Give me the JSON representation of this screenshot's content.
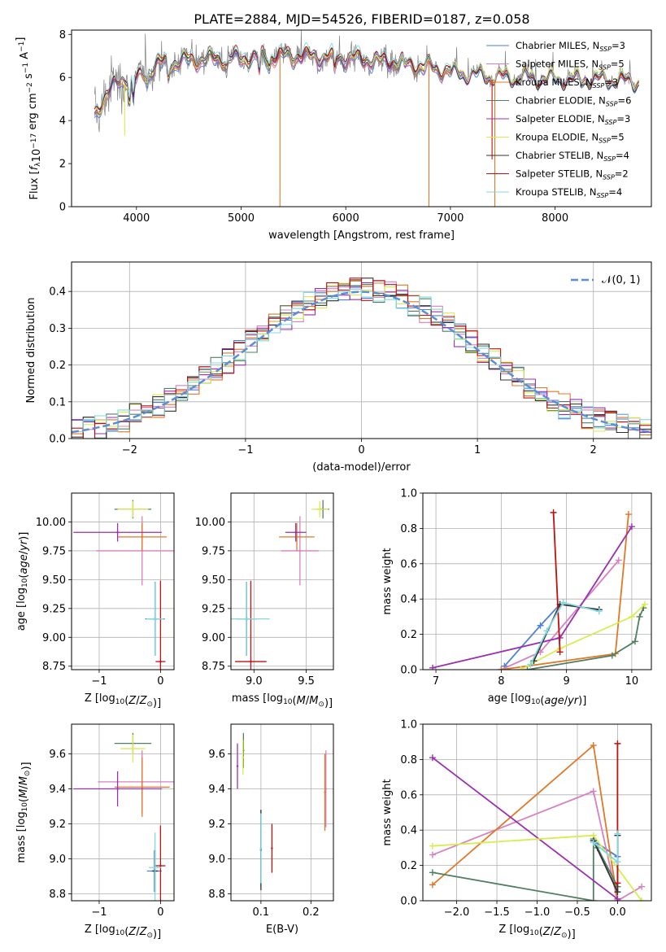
{
  "figure": {
    "title": "PLATE=2884, MJD=54526, FIBERID=0187, z=0.058"
  },
  "colors": {
    "Chabrier MILES": "#4a7fd8",
    "Salpeter MILES": "#d880c0",
    "Kroupa MILES": "#e07828",
    "Chabrier ELODIE": "#508060",
    "Salpeter ELODIE": "#9a30b0",
    "Kroupa ELODIE": "#d8ec50",
    "Chabrier STELIB": "#333333",
    "Salpeter STELIB": "#c01010",
    "Kroupa STELIB": "#80d8e0",
    "data": "#808080",
    "normal": "#5b8ed6"
  },
  "chart_data": [
    {
      "id": "spectrum",
      "type": "line",
      "xlabel": "wavelength [Angstrom, rest frame]",
      "ylabel": "Flux [f_λ 10^-17 erg cm^-2 s^-1 A^-1]",
      "xlim": [
        3380,
        8920
      ],
      "ylim": [
        0,
        8.2
      ],
      "xticks": [
        4000,
        5000,
        6000,
        7000,
        8000
      ],
      "yticks": [
        0,
        2,
        4,
        6,
        8
      ],
      "legend_position": "upper right",
      "legend": [
        {
          "name": "Chabrier MILES",
          "nssp": "3"
        },
        {
          "name": "Salpeter MILES",
          "nssp": "5"
        },
        {
          "name": "Kroupa MILES",
          "nssp": "3"
        },
        {
          "name": "Chabrier ELODIE",
          "nssp": "6"
        },
        {
          "name": "Salpeter ELODIE",
          "nssp": "3"
        },
        {
          "name": "Kroupa ELODIE",
          "nssp": "5"
        },
        {
          "name": "Chabrier STELIB",
          "nssp": "4"
        },
        {
          "name": "Salpeter STELIB",
          "nssp": "2"
        },
        {
          "name": "Kroupa STELIB",
          "nssp": "4"
        }
      ],
      "continuum_knots": [
        [
          3600,
          4.3
        ],
        [
          3700,
          5.1
        ],
        [
          3800,
          5.7
        ],
        [
          3900,
          6.0
        ],
        [
          4000,
          5.9
        ],
        [
          4200,
          6.6
        ],
        [
          4500,
          6.8
        ],
        [
          5000,
          6.9
        ],
        [
          5500,
          7.0
        ],
        [
          6000,
          6.9
        ],
        [
          6500,
          6.7
        ],
        [
          7000,
          6.3
        ],
        [
          7500,
          6.1
        ],
        [
          8000,
          6.0
        ],
        [
          8400,
          6.0
        ],
        [
          8800,
          5.9
        ]
      ],
      "absorption_lines": [
        [
          3934,
          1.2
        ],
        [
          3969,
          1.0
        ],
        [
          4102,
          0.4
        ],
        [
          4304,
          0.7
        ],
        [
          4861,
          0.4
        ],
        [
          5175,
          0.8
        ],
        [
          5270,
          0.4
        ],
        [
          5892,
          0.7
        ],
        [
          6563,
          0.3
        ]
      ],
      "gaps": [
        [
          3888,
          3.3
        ],
        [
          5371,
          0.0
        ],
        [
          6795,
          0.0
        ],
        [
          7398,
          2.2
        ],
        [
          7424,
          0.0
        ]
      ]
    },
    {
      "id": "residuals",
      "type": "histogram",
      "xlabel": "(data-model)/error",
      "ylabel": "Normed distribution",
      "xlim": [
        -2.5,
        2.5
      ],
      "ylim": [
        0,
        0.48
      ],
      "xticks": [
        -2,
        -1,
        0,
        1,
        2
      ],
      "yticks": [
        0.0,
        0.1,
        0.2,
        0.3,
        0.4
      ],
      "bin_width": 0.1,
      "legend": [
        {
          "name": "$\\mathcal{N}(0, 1)$",
          "label": "𝒩(0, 1)"
        }
      ],
      "legend_position": "upper right"
    },
    {
      "id": "age_vs_Z",
      "type": "scatter",
      "xlabel": "Z [log10(Z/Z⊙)]",
      "ylabel": "age  [log10(age/yr)]",
      "xlim": [
        -1.45,
        0.22
      ],
      "ylim": [
        8.72,
        10.25
      ],
      "xticks": [
        -1,
        0
      ],
      "yticks": [
        8.75,
        9.0,
        9.25,
        9.5,
        9.75,
        10.0
      ],
      "points": [
        {
          "s": "Chabrier MILES",
          "x": -0.09,
          "y": 9.16,
          "xerr": 0.16,
          "yerr": 0.32
        },
        {
          "s": "Salpeter MILES",
          "x": -0.3,
          "y": 9.75,
          "xerr": 0.75,
          "yerr": 0.3
        },
        {
          "s": "Kroupa MILES",
          "x": -0.3,
          "y": 9.87,
          "xerr": 0.4,
          "yerr": 0.12
        },
        {
          "s": "Chabrier ELODIE",
          "x": -0.45,
          "y": 10.11,
          "xerr": 0.3,
          "yerr": 0.08
        },
        {
          "s": "Salpeter ELODIE",
          "x": -0.7,
          "y": 9.91,
          "xerr": 0.72,
          "yerr": 0.08
        },
        {
          "s": "Kroupa ELODIE",
          "x": -0.45,
          "y": 10.11,
          "xerr": 0.25,
          "yerr": 0.07
        },
        {
          "s": "Chabrier STELIB",
          "x": -0.09,
          "y": 9.16,
          "xerr": 0.04,
          "yerr": 0.32
        },
        {
          "s": "Salpeter STELIB",
          "x": 0.0,
          "y": 8.79,
          "xerr": 0.08,
          "yerr": 0.7
        },
        {
          "s": "Kroupa STELIB",
          "x": -0.09,
          "y": 9.16,
          "xerr": 0.14,
          "yerr": 0.32
        }
      ]
    },
    {
      "id": "age_vs_mass",
      "type": "scatter",
      "xlabel": "mass [log10(M/M⊙)]",
      "ylabel": "",
      "xlim": [
        8.78,
        9.76
      ],
      "ylim": [
        8.72,
        10.25
      ],
      "xticks": [
        9.0,
        9.5
      ],
      "yticks": [
        8.75,
        9.0,
        9.25,
        9.5,
        9.75,
        10.0
      ],
      "points": [
        {
          "s": "Chabrier MILES",
          "x": 8.93,
          "y": 9.16,
          "xerr": 0.1,
          "yerr": 0.32
        },
        {
          "s": "Salpeter MILES",
          "x": 9.44,
          "y": 9.75,
          "xerr": 0.18,
          "yerr": 0.3
        },
        {
          "s": "Kroupa MILES",
          "x": 9.41,
          "y": 9.87,
          "xerr": 0.17,
          "yerr": 0.12
        },
        {
          "s": "Chabrier ELODIE",
          "x": 9.66,
          "y": 10.11,
          "xerr": 0.06,
          "yerr": 0.08
        },
        {
          "s": "Salpeter ELODIE",
          "x": 9.4,
          "y": 9.91,
          "xerr": 0.1,
          "yerr": 0.08
        },
        {
          "s": "Kroupa ELODIE",
          "x": 9.63,
          "y": 10.11,
          "xerr": 0.08,
          "yerr": 0.07
        },
        {
          "s": "Chabrier STELIB",
          "x": 8.93,
          "y": 9.16,
          "xerr": 0.02,
          "yerr": 0.32
        },
        {
          "s": "Salpeter STELIB",
          "x": 8.97,
          "y": 8.79,
          "xerr": 0.15,
          "yerr": 0.7
        },
        {
          "s": "Kroupa STELIB",
          "x": 8.93,
          "y": 9.16,
          "xerr": 0.22,
          "yerr": 0.32
        }
      ]
    },
    {
      "id": "mass_weight_vs_age",
      "type": "line",
      "xlabel": "age  [log10(age/yr)]",
      "ylabel": "mass weight",
      "xlim": [
        6.8,
        10.3
      ],
      "ylim": [
        0,
        1.0
      ],
      "xticks": [
        7,
        8,
        9,
        10
      ],
      "yticks": [
        0.0,
        0.2,
        0.4,
        0.6,
        0.8,
        1.0
      ],
      "series": [
        {
          "name": "Chabrier MILES",
          "x": [
            8.05,
            8.6,
            8.9
          ],
          "y": [
            0.02,
            0.25,
            0.37
          ]
        },
        {
          "name": "Salpeter MILES",
          "x": [
            8.0,
            8.6,
            9.8
          ],
          "y": [
            0.0,
            0.1,
            0.62
          ]
        },
        {
          "name": "Kroupa MILES",
          "x": [
            8.0,
            9.75,
            9.95
          ],
          "y": [
            0.0,
            0.09,
            0.88
          ]
        },
        {
          "name": "Chabrier ELODIE",
          "x": [
            8.4,
            9.7,
            10.05,
            10.12,
            10.18
          ],
          "y": [
            0.0,
            0.08,
            0.16,
            0.3,
            0.35
          ]
        },
        {
          "name": "Salpeter ELODIE",
          "x": [
            6.95,
            8.9,
            10.0
          ],
          "y": [
            0.01,
            0.18,
            0.81
          ]
        },
        {
          "name": "Kroupa ELODIE",
          "x": [
            8.3,
            8.9,
            10.0,
            10.2
          ],
          "y": [
            0.0,
            0.12,
            0.3,
            0.37
          ]
        },
        {
          "name": "Chabrier STELIB",
          "x": [
            8.5,
            8.9,
            9.5
          ],
          "y": [
            0.05,
            0.37,
            0.34
          ]
        },
        {
          "name": "Salpeter STELIB",
          "x": [
            8.8,
            8.9
          ],
          "y": [
            0.89,
            0.1
          ]
        },
        {
          "name": "Kroupa STELIB",
          "x": [
            8.45,
            8.7,
            8.95,
            9.5
          ],
          "y": [
            0.03,
            0.22,
            0.38,
            0.33
          ]
        }
      ]
    },
    {
      "id": "mass_vs_Z",
      "type": "scatter",
      "xlabel": "Z [log10(Z/Z⊙)]",
      "ylabel": "mass [log10(M/M⊙)]",
      "xlim": [
        -1.45,
        0.22
      ],
      "ylim": [
        8.76,
        9.77
      ],
      "xticks": [
        -1,
        0
      ],
      "yticks": [
        8.8,
        9.0,
        9.2,
        9.4,
        9.6
      ],
      "points": [
        {
          "s": "Chabrier MILES",
          "x": -0.1,
          "y": 8.93,
          "xerr": 0.12,
          "yerr": 0.12
        },
        {
          "s": "Salpeter MILES",
          "x": -0.3,
          "y": 9.44,
          "xerr": 0.72,
          "yerr": 0.18
        },
        {
          "s": "Kroupa MILES",
          "x": -0.3,
          "y": 9.41,
          "xerr": 0.45,
          "yerr": 0.17
        },
        {
          "s": "Chabrier ELODIE",
          "x": -0.45,
          "y": 9.66,
          "xerr": 0.3,
          "yerr": 0.06
        },
        {
          "s": "Salpeter ELODIE",
          "x": -0.7,
          "y": 9.4,
          "xerr": 0.72,
          "yerr": 0.1
        },
        {
          "s": "Kroupa ELODIE",
          "x": -0.45,
          "y": 9.63,
          "xerr": 0.2,
          "yerr": 0.08
        },
        {
          "s": "Chabrier STELIB",
          "x": -0.09,
          "y": 8.93,
          "xerr": 0.05,
          "yerr": 0.12
        },
        {
          "s": "Salpeter STELIB",
          "x": 0.0,
          "y": 8.96,
          "xerr": 0.08,
          "yerr": 0.23
        },
        {
          "s": "Kroupa STELIB",
          "x": -0.09,
          "y": 8.95,
          "xerr": 0.1,
          "yerr": 0.2
        }
      ]
    },
    {
      "id": "mass_vs_ebv",
      "type": "scatter",
      "xlabel": "E(B-V)",
      "ylabel": "",
      "xlim": [
        0.04,
        0.245
      ],
      "ylim": [
        8.76,
        9.77
      ],
      "xticks": [
        0.1,
        0.2
      ],
      "yticks": [
        8.8,
        9.0,
        9.2,
        9.4,
        9.6
      ],
      "points": [
        {
          "s": "Chabrier MILES",
          "x": 0.1,
          "y": 9.06,
          "yerr": 0.22
        },
        {
          "s": "Salpeter MILES",
          "x": 0.23,
          "y": 9.4,
          "yerr": 0.22
        },
        {
          "s": "Kroupa MILES",
          "x": 0.228,
          "y": 9.38,
          "yerr": 0.22
        },
        {
          "s": "Chabrier ELODIE",
          "x": 0.065,
          "y": 9.62,
          "yerr": 0.1
        },
        {
          "s": "Salpeter ELODIE",
          "x": 0.053,
          "y": 9.53,
          "yerr": 0.13
        },
        {
          "s": "Kroupa ELODIE",
          "x": 0.064,
          "y": 9.58,
          "yerr": 0.1
        },
        {
          "s": "Chabrier STELIB",
          "x": 0.1,
          "y": 9.05,
          "yerr": 0.23
        },
        {
          "s": "Salpeter STELIB",
          "x": 0.122,
          "y": 9.06,
          "yerr": 0.14
        },
        {
          "s": "Kroupa STELIB",
          "x": 0.1,
          "y": 9.06,
          "yerr": 0.2
        }
      ]
    },
    {
      "id": "mass_weight_vs_Z",
      "type": "line",
      "xlabel": "Z [log10(Z/Z⊙)]",
      "ylabel": "mass weight",
      "xlim": [
        -2.42,
        0.42
      ],
      "ylim": [
        0,
        1.0
      ],
      "xticks": [
        -2.0,
        -1.5,
        -1.0,
        -0.5,
        0.0
      ],
      "yticks": [
        0.0,
        0.2,
        0.4,
        0.6,
        0.8,
        1.0
      ],
      "series": [
        {
          "name": "Chabrier MILES",
          "x": [
            -0.3,
            0.0,
            0.0
          ],
          "y": [
            0.34,
            0.25,
            0.37
          ]
        },
        {
          "name": "Salpeter MILES",
          "x": [
            -2.3,
            -0.3,
            0.0,
            0.3
          ],
          "y": [
            0.26,
            0.62,
            0.0,
            0.08
          ]
        },
        {
          "name": "Kroupa MILES",
          "x": [
            -2.3,
            -0.3,
            0.0
          ],
          "y": [
            0.09,
            0.88,
            0.0
          ]
        },
        {
          "name": "Chabrier ELODIE",
          "x": [
            -2.3,
            -0.3,
            -0.3,
            -0.25,
            0.0
          ],
          "y": [
            0.16,
            0.0,
            0.35,
            0.3,
            0.08
          ]
        },
        {
          "name": "Salpeter ELODIE",
          "x": [
            -2.3,
            0.0
          ],
          "y": [
            0.81,
            0.01
          ]
        },
        {
          "name": "Kroupa ELODIE",
          "x": [
            -2.3,
            -0.3,
            0.3
          ],
          "y": [
            0.31,
            0.37,
            0.0
          ]
        },
        {
          "name": "Chabrier STELIB",
          "x": [
            -0.3,
            0.0,
            0.0
          ],
          "y": [
            0.34,
            0.05,
            0.37
          ]
        },
        {
          "name": "Salpeter STELIB",
          "x": [
            0.0,
            0.0
          ],
          "y": [
            0.89,
            0.1
          ]
        },
        {
          "name": "Kroupa STELIB",
          "x": [
            -0.3,
            0.0,
            0.0
          ],
          "y": [
            0.33,
            0.22,
            0.38
          ]
        }
      ]
    }
  ]
}
